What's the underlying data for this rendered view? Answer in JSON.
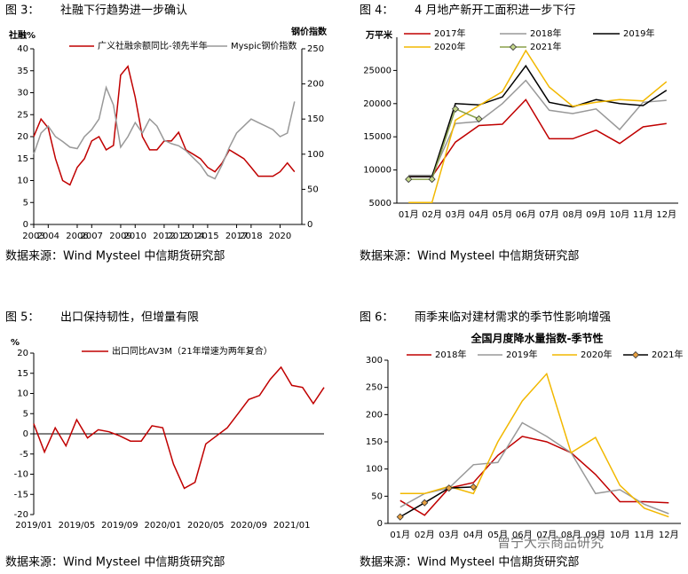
{
  "chart_data": [
    {
      "type": "line",
      "figure_label": "图 3：",
      "title": "社融下行趋势进一步确认",
      "source": "数据来源：Wind Mysteel 中信期货研究部",
      "y_label": "社融%",
      "y2_label": "钢价指数",
      "x": [
        2003,
        2003.5,
        2004,
        2004.5,
        2005,
        2005.5,
        2006,
        2006.5,
        2007,
        2007.5,
        2008,
        2008.5,
        2009,
        2009.5,
        2010,
        2010.5,
        2011,
        2011.5,
        2012,
        2012.5,
        2013,
        2013.5,
        2014,
        2014.5,
        2015,
        2015.5,
        2016,
        2016.5,
        2017,
        2017.5,
        2018,
        2018.5,
        2019,
        2019.5,
        2020,
        2020.5,
        2021
      ],
      "xlim": [
        2003,
        2021.5
      ],
      "xticks": [
        2003,
        2004,
        2006,
        2007,
        2009,
        2010,
        2012,
        2013,
        2014,
        2015,
        2017,
        2018,
        2020
      ],
      "ylim": [
        0,
        40
      ],
      "yticks": [
        0,
        5,
        10,
        15,
        20,
        25,
        30,
        35,
        40
      ],
      "y2lim": [
        0,
        250
      ],
      "y2ticks": [
        0,
        50,
        100,
        150,
        200,
        250
      ],
      "series": [
        {
          "name": "广义社融余额同比-领先半年",
          "color": "#c00000",
          "values": [
            20,
            24,
            22,
            15,
            10,
            9,
            13,
            15,
            19,
            20,
            17,
            18,
            34,
            36,
            29,
            20,
            17,
            17,
            19,
            19,
            21,
            17,
            16,
            15,
            13,
            12,
            14,
            17,
            16,
            15,
            13,
            11,
            11,
            11,
            12,
            14,
            12
          ]
        },
        {
          "name": "Myspic钢价指数",
          "color": "#999999",
          "axis": "y2",
          "values": [
            100,
            130,
            140,
            125,
            118,
            110,
            108,
            125,
            135,
            150,
            195,
            170,
            110,
            125,
            145,
            130,
            150,
            140,
            120,
            115,
            112,
            105,
            95,
            85,
            70,
            65,
            85,
            110,
            130,
            140,
            150,
            145,
            140,
            135,
            125,
            130,
            175
          ]
        }
      ]
    },
    {
      "type": "line",
      "figure_label": "图 4：",
      "title": "4 月地产新开工面积进一步下行",
      "source": "数据来源：Wind Mysteel 中信期货研究部",
      "y_label": "万平米",
      "categories": [
        "01月",
        "02月",
        "03月",
        "04月",
        "05月",
        "06月",
        "07月",
        "08月",
        "09月",
        "10月",
        "11月",
        "12月"
      ],
      "ylim": [
        5000,
        30000
      ],
      "yticks": [
        5000,
        10000,
        15000,
        20000,
        25000
      ],
      "series": [
        {
          "name": "2017年",
          "color": "#c00000",
          "values": [
            9000,
            9000,
            14200,
            16700,
            16900,
            20600,
            14700,
            14700,
            16000,
            14000,
            16500,
            17000
          ]
        },
        {
          "name": "2018年",
          "color": "#999999",
          "values": [
            9200,
            9200,
            17000,
            17300,
            20000,
            23500,
            19000,
            18500,
            19200,
            16100,
            20200,
            20500
          ]
        },
        {
          "name": "2019年",
          "color": "#000000",
          "values": [
            9000,
            9000,
            20000,
            19800,
            21000,
            25700,
            20200,
            19500,
            20600,
            20000,
            19700,
            22000
          ]
        },
        {
          "name": "2020年",
          "color": "#f2b800",
          "values": [
            5100,
            5100,
            17500,
            19700,
            21800,
            28000,
            22500,
            19600,
            20200,
            20600,
            20400,
            23300
          ]
        },
        {
          "name": "2021年",
          "color": "#8aa04a",
          "marker": "diamond",
          "marker_fill": "#c4d68a",
          "values": [
            8600,
            8600,
            19200,
            17700,
            null,
            null,
            null,
            null,
            null,
            null,
            null,
            null
          ]
        }
      ]
    },
    {
      "type": "line",
      "figure_label": "图 5：",
      "title": "出口保持韧性，但增量有限",
      "source": "数据来源：Wind Mysteel 中信期货研究部",
      "y_label": "%",
      "categories": [
        "2019/01",
        null,
        null,
        null,
        "2019/05",
        null,
        null,
        null,
        "2019/09",
        null,
        null,
        null,
        "2020/01",
        null,
        null,
        null,
        "2020/05",
        null,
        null,
        null,
        "2020/09",
        null,
        null,
        null,
        "2021/01",
        null,
        null,
        null
      ],
      "ylim": [
        -20,
        20
      ],
      "yticks": [
        -20,
        -15,
        -10,
        -5,
        0,
        5,
        10,
        15,
        20
      ],
      "series": [
        {
          "name": "出口同比AV3M（21年增速为两年复合）",
          "color": "#c00000",
          "values": [
            2.5,
            -4.5,
            1.5,
            -3,
            3.5,
            -1,
            1,
            0.5,
            -0.5,
            -1.8,
            -1.8,
            2,
            1.5,
            -7.5,
            -13.5,
            -12,
            -2.5,
            -0.5,
            1.5,
            5,
            8.5,
            9.5,
            13.5,
            16.5,
            12,
            11.5,
            7.5,
            11.5
          ]
        }
      ]
    },
    {
      "type": "line",
      "figure_label": "图 6：",
      "title": "雨季来临对建材需求的季节性影响增强",
      "source": "数据来源：Wind Mysteel 中信期货研究部",
      "chart_title": "全国月度降水量指数-季节性",
      "watermark": "曾宁大宗商品研究",
      "categories": [
        "01月",
        "02月",
        "03月",
        "04月",
        "05月",
        "06月",
        "07月",
        "08月",
        "09月",
        "10月",
        "11月",
        "12月"
      ],
      "ylim": [
        0,
        300
      ],
      "yticks": [
        0,
        50,
        100,
        150,
        200,
        250,
        300
      ],
      "series": [
        {
          "name": "2018年",
          "color": "#c00000",
          "values": [
            42,
            15,
            65,
            75,
            125,
            160,
            150,
            130,
            90,
            40,
            40,
            38
          ]
        },
        {
          "name": "2019年",
          "color": "#999999",
          "values": [
            30,
            55,
            65,
            108,
            112,
            185,
            160,
            130,
            55,
            62,
            35,
            18
          ]
        },
        {
          "name": "2020年",
          "color": "#f2b800",
          "values": [
            55,
            55,
            68,
            55,
            150,
            225,
            275,
            130,
            158,
            70,
            28,
            12
          ]
        },
        {
          "name": "2021年",
          "color": "#000000",
          "marker": "diamond",
          "marker_fill": "#e8a040",
          "values": [
            12,
            38,
            65,
            67,
            null,
            null,
            null,
            null,
            null,
            null,
            null,
            null
          ]
        }
      ]
    }
  ]
}
